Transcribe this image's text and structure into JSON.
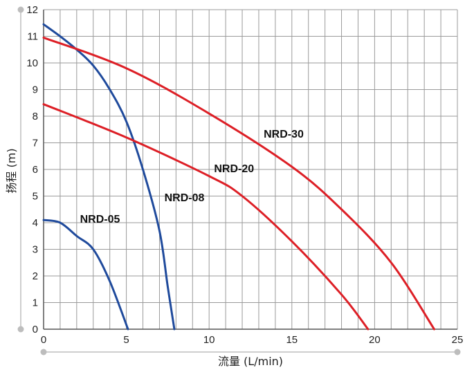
{
  "chart_data": {
    "type": "line",
    "xlabel": "流量 (L/min)",
    "ylabel": "扬程 (m)",
    "xlim": [
      0,
      25
    ],
    "ylim": [
      0,
      12
    ],
    "xticks": [
      0,
      5,
      10,
      15,
      20,
      25
    ],
    "yticks": [
      0,
      1,
      2,
      3,
      4,
      5,
      6,
      7,
      8,
      9,
      10,
      11,
      12
    ],
    "grid": true,
    "series": [
      {
        "name": "NRD-05",
        "color": "#1f4a9c",
        "x": [
          0,
          1,
          2,
          3,
          4,
          5.1
        ],
        "y": [
          4.1,
          4.0,
          3.5,
          3.0,
          1.8,
          0.0
        ]
      },
      {
        "name": "NRD-08",
        "color": "#1f4a9c",
        "x": [
          0,
          1,
          2,
          3,
          4,
          5,
          6,
          7,
          7.5,
          7.9
        ],
        "y": [
          11.45,
          11.0,
          10.5,
          9.9,
          9.0,
          7.8,
          6.0,
          3.7,
          1.6,
          0.0
        ]
      },
      {
        "name": "NRD-20",
        "color": "#dd1f26",
        "x": [
          0,
          5,
          10,
          12,
          15,
          18,
          19.6
        ],
        "y": [
          8.45,
          7.2,
          5.75,
          5.0,
          3.3,
          1.3,
          0.0
        ]
      },
      {
        "name": "NRD-30",
        "color": "#dd1f26",
        "x": [
          0,
          5,
          10,
          15,
          18,
          21,
          23.6
        ],
        "y": [
          10.95,
          9.8,
          8.1,
          6.1,
          4.5,
          2.5,
          0.0
        ]
      }
    ],
    "annotations": [
      {
        "text": "NRD-05",
        "x": 2.2,
        "y": 4.0
      },
      {
        "text": "NRD-08",
        "x": 7.3,
        "y": 4.8
      },
      {
        "text": "NRD-20",
        "x": 10.3,
        "y": 5.9
      },
      {
        "text": "NRD-30",
        "x": 13.3,
        "y": 7.2
      }
    ]
  }
}
